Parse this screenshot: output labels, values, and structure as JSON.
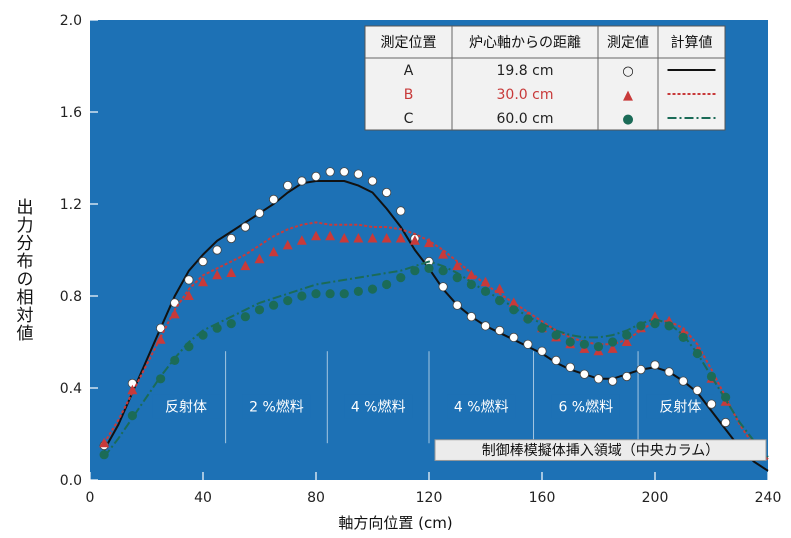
{
  "chart_data": {
    "type": "line",
    "xlabel": "軸方向位置 (cm)",
    "ylabel": "出力分布の相対値",
    "xlim": [
      0,
      240
    ],
    "ylim": [
      0,
      2.0
    ],
    "xticks": [
      "0",
      "40",
      "80",
      "120",
      "160",
      "200",
      "240"
    ],
    "yticks": [
      "0.0",
      "0.4",
      "0.8",
      "1.2",
      "1.6",
      "2.0"
    ],
    "grid": false,
    "colors": {
      "background": "#1d71b5",
      "series_a": "#111111",
      "series_b": "#c83a3a",
      "series_c": "#1b6b57",
      "axis_text": "#222222"
    },
    "legend": {
      "headers": [
        "測定位置",
        "炉心軸からの距離",
        "測定値",
        "計算値"
      ],
      "rows": [
        {
          "pos": "A",
          "dist": "19.8 cm",
          "marker": "○"
        },
        {
          "pos": "B",
          "dist": "30.0 cm",
          "marker": "▲"
        },
        {
          "pos": "C",
          "dist": "60.0 cm",
          "marker": "●"
        }
      ]
    },
    "regions": [
      {
        "label": "反射体",
        "from": 20,
        "to": 48
      },
      {
        "label": "2 %燃料",
        "from": 48,
        "to": 84
      },
      {
        "label": "4 %燃料",
        "from": 84,
        "to": 120
      },
      {
        "label": "4 %燃料",
        "from": 120,
        "to": 157
      },
      {
        "label": "6 %燃料",
        "from": 157,
        "to": 194
      },
      {
        "label": "反射体",
        "from": 194,
        "to": 224
      }
    ],
    "insertion_label": "制御棒模擬体挿入領域（中央カラム）",
    "series": [
      {
        "name": "A",
        "measured": {
          "x": [
            5,
            15,
            25,
            30,
            35,
            40,
            45,
            50,
            55,
            60,
            65,
            70,
            75,
            80,
            85,
            90,
            95,
            100,
            105,
            110,
            115,
            120,
            125,
            130,
            135,
            140,
            145,
            150,
            155,
            160,
            165,
            170,
            175,
            180,
            185,
            190,
            195,
            200,
            205,
            210,
            215,
            220,
            225
          ],
          "y": [
            0.15,
            0.42,
            0.66,
            0.77,
            0.87,
            0.95,
            1.0,
            1.05,
            1.1,
            1.16,
            1.22,
            1.28,
            1.3,
            1.32,
            1.34,
            1.34,
            1.33,
            1.3,
            1.25,
            1.17,
            1.05,
            0.95,
            0.84,
            0.76,
            0.71,
            0.67,
            0.65,
            0.62,
            0.59,
            0.56,
            0.52,
            0.49,
            0.46,
            0.44,
            0.43,
            0.45,
            0.48,
            0.5,
            0.47,
            0.43,
            0.39,
            0.33,
            0.25
          ]
        },
        "calculated": {
          "x": [
            5,
            10,
            15,
            20,
            25,
            30,
            35,
            40,
            45,
            50,
            55,
            60,
            65,
            70,
            75,
            80,
            85,
            90,
            95,
            100,
            105,
            110,
            115,
            120,
            125,
            130,
            135,
            140,
            145,
            150,
            155,
            160,
            165,
            170,
            175,
            180,
            185,
            190,
            195,
            200,
            205,
            210,
            215,
            220,
            225,
            230,
            235,
            240
          ],
          "y": [
            0.13,
            0.24,
            0.38,
            0.52,
            0.66,
            0.8,
            0.91,
            0.98,
            1.04,
            1.08,
            1.12,
            1.16,
            1.2,
            1.25,
            1.29,
            1.3,
            1.3,
            1.3,
            1.28,
            1.25,
            1.18,
            1.1,
            1.0,
            0.92,
            0.83,
            0.76,
            0.71,
            0.67,
            0.64,
            0.61,
            0.58,
            0.55,
            0.51,
            0.48,
            0.46,
            0.44,
            0.44,
            0.46,
            0.48,
            0.49,
            0.47,
            0.43,
            0.38,
            0.3,
            0.22,
            0.14,
            0.08,
            0.04
          ]
        }
      },
      {
        "name": "B",
        "measured": {
          "x": [
            5,
            15,
            25,
            30,
            35,
            40,
            45,
            50,
            55,
            60,
            65,
            70,
            75,
            80,
            85,
            90,
            95,
            100,
            105,
            110,
            115,
            120,
            125,
            130,
            135,
            140,
            145,
            150,
            155,
            160,
            165,
            170,
            175,
            180,
            185,
            190,
            195,
            200,
            205,
            210,
            215,
            220,
            225
          ],
          "y": [
            0.16,
            0.39,
            0.61,
            0.72,
            0.8,
            0.86,
            0.89,
            0.9,
            0.93,
            0.96,
            0.99,
            1.02,
            1.04,
            1.06,
            1.06,
            1.05,
            1.05,
            1.05,
            1.05,
            1.05,
            1.04,
            1.03,
            0.98,
            0.93,
            0.89,
            0.86,
            0.83,
            0.77,
            0.71,
            0.66,
            0.62,
            0.59,
            0.57,
            0.56,
            0.57,
            0.6,
            0.66,
            0.71,
            0.69,
            0.64,
            0.56,
            0.44,
            0.34
          ]
        },
        "calculated": {
          "x": [
            5,
            10,
            15,
            20,
            25,
            30,
            35,
            40,
            45,
            50,
            55,
            60,
            65,
            70,
            75,
            80,
            85,
            90,
            95,
            100,
            105,
            110,
            115,
            120,
            125,
            130,
            135,
            140,
            145,
            150,
            155,
            160,
            165,
            170,
            175,
            180,
            185,
            190,
            195,
            200,
            205,
            210,
            215,
            220,
            225,
            230,
            235,
            240
          ],
          "y": [
            0.16,
            0.26,
            0.38,
            0.5,
            0.62,
            0.74,
            0.83,
            0.89,
            0.92,
            0.95,
            0.98,
            1.02,
            1.06,
            1.09,
            1.11,
            1.12,
            1.11,
            1.11,
            1.11,
            1.1,
            1.1,
            1.09,
            1.07,
            1.04,
            1.0,
            0.95,
            0.9,
            0.85,
            0.81,
            0.77,
            0.73,
            0.69,
            0.65,
            0.62,
            0.6,
            0.59,
            0.59,
            0.61,
            0.65,
            0.69,
            0.69,
            0.66,
            0.59,
            0.48,
            0.36,
            0.24,
            0.15,
            0.09
          ]
        }
      },
      {
        "name": "C",
        "measured": {
          "x": [
            5,
            15,
            25,
            30,
            35,
            40,
            45,
            50,
            55,
            60,
            65,
            70,
            75,
            80,
            85,
            90,
            95,
            100,
            105,
            110,
            115,
            120,
            125,
            130,
            135,
            140,
            145,
            150,
            155,
            160,
            165,
            170,
            175,
            180,
            185,
            190,
            195,
            200,
            205,
            210,
            215,
            220,
            225
          ],
          "y": [
            0.11,
            0.28,
            0.44,
            0.52,
            0.58,
            0.63,
            0.66,
            0.68,
            0.71,
            0.74,
            0.76,
            0.78,
            0.8,
            0.81,
            0.81,
            0.81,
            0.82,
            0.83,
            0.85,
            0.88,
            0.91,
            0.92,
            0.91,
            0.88,
            0.85,
            0.82,
            0.78,
            0.74,
            0.7,
            0.66,
            0.63,
            0.6,
            0.59,
            0.58,
            0.6,
            0.63,
            0.67,
            0.68,
            0.67,
            0.62,
            0.55,
            0.45,
            0.36
          ]
        },
        "calculated": {
          "x": [
            5,
            10,
            15,
            20,
            25,
            30,
            35,
            40,
            45,
            50,
            55,
            60,
            65,
            70,
            75,
            80,
            85,
            90,
            95,
            100,
            105,
            110,
            115,
            120,
            125,
            130,
            135,
            140,
            145,
            150,
            155,
            160,
            165,
            170,
            175,
            180,
            185,
            190,
            195,
            200,
            205,
            210,
            215,
            220,
            225,
            230,
            235,
            240
          ],
          "y": [
            0.1,
            0.18,
            0.27,
            0.36,
            0.45,
            0.53,
            0.6,
            0.65,
            0.68,
            0.71,
            0.74,
            0.77,
            0.79,
            0.81,
            0.83,
            0.85,
            0.86,
            0.87,
            0.88,
            0.89,
            0.9,
            0.91,
            0.93,
            0.95,
            0.93,
            0.9,
            0.86,
            0.82,
            0.79,
            0.75,
            0.71,
            0.68,
            0.65,
            0.63,
            0.62,
            0.62,
            0.63,
            0.65,
            0.68,
            0.7,
            0.68,
            0.63,
            0.55,
            0.45,
            0.35,
            0.25,
            0.17,
            0.1
          ]
        }
      }
    ]
  }
}
